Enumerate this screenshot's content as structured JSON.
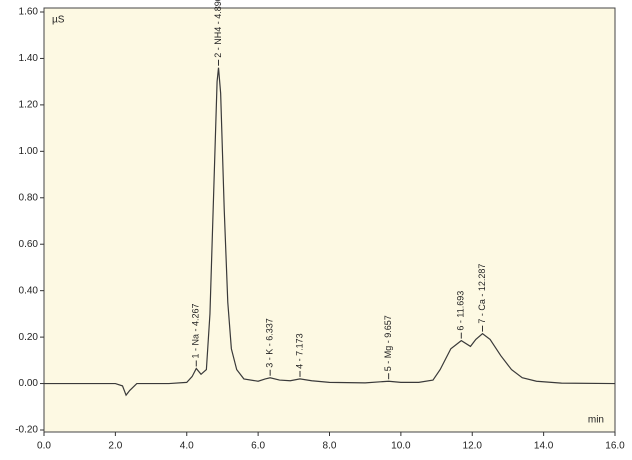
{
  "chart_data": {
    "type": "line",
    "y_label": "µS",
    "x_label": "min",
    "x": [
      0,
      1,
      2,
      2.2,
      2.3,
      2.4,
      2.6,
      3.5,
      4.0,
      4.15,
      4.267,
      4.4,
      4.55,
      4.65,
      4.75,
      4.85,
      4.89,
      4.95,
      5.05,
      5.15,
      5.25,
      5.4,
      5.6,
      6.0,
      6.2,
      6.337,
      6.6,
      6.9,
      7.173,
      7.5,
      8.0,
      9.0,
      9.657,
      10.0,
      10.5,
      10.9,
      11.1,
      11.4,
      11.693,
      11.95,
      12.1,
      12.287,
      12.5,
      12.8,
      13.1,
      13.4,
      13.8,
      14.5,
      16.0
    ],
    "series": [
      {
        "color": "#3a3a3a",
        "values": [
          0,
          0,
          0,
          -0.01,
          -0.05,
          -0.03,
          0,
          0,
          0.005,
          0.03,
          0.065,
          0.04,
          0.06,
          0.3,
          0.8,
          1.3,
          1.36,
          1.25,
          0.75,
          0.35,
          0.15,
          0.06,
          0.02,
          0.01,
          0.02,
          0.025,
          0.015,
          0.012,
          0.02,
          0.012,
          0.005,
          0.003,
          0.01,
          0.005,
          0.005,
          0.015,
          0.06,
          0.15,
          0.185,
          0.16,
          0.19,
          0.215,
          0.19,
          0.12,
          0.06,
          0.025,
          0.01,
          0.002,
          0
        ]
      }
    ],
    "peaks": [
      {
        "label": "1 - Na - 4.267",
        "x": 4.267,
        "y": 0.065
      },
      {
        "label": "2 - NH4 - 4.890",
        "x": 4.89,
        "y": 1.36
      },
      {
        "label": "3 - K - 6.337",
        "x": 6.337,
        "y": 0.025
      },
      {
        "label": "4 - 7.173",
        "x": 7.173,
        "y": 0.02
      },
      {
        "label": "5 - Mg - 9.657",
        "x": 9.657,
        "y": 0.01
      },
      {
        "label": "6 - 11.693",
        "x": 11.693,
        "y": 0.185
      },
      {
        "label": "7 - Ca - 12.287",
        "x": 12.287,
        "y": 0.215
      }
    ],
    "xlim": [
      0,
      16
    ],
    "xticks": [
      {
        "value": 0,
        "label": "0.0"
      },
      {
        "value": 2,
        "label": "2.0"
      },
      {
        "value": 4,
        "label": "4.0"
      },
      {
        "value": 6,
        "label": "6.0"
      },
      {
        "value": 8,
        "label": "8.0"
      },
      {
        "value": 10,
        "label": "10.0"
      },
      {
        "value": 12,
        "label": "12.0"
      },
      {
        "value": 14,
        "label": "14.0"
      },
      {
        "value": 16,
        "label": "16.0"
      }
    ],
    "ylim": [
      -0.2,
      1.6
    ],
    "yticks": [
      {
        "value": -0.2,
        "label": "-0.20"
      },
      {
        "value": 0,
        "label": "0.00"
      },
      {
        "value": 0.2,
        "label": "0.20"
      },
      {
        "value": 0.4,
        "label": "0.40"
      },
      {
        "value": 0.6,
        "label": "0.60"
      },
      {
        "value": 0.8,
        "label": "0.80"
      },
      {
        "value": 1.0,
        "label": "1.00"
      },
      {
        "value": 1.2,
        "label": "1.20"
      },
      {
        "value": 1.4,
        "label": "1.40"
      },
      {
        "value": 1.6,
        "label": "1.60"
      }
    ]
  }
}
